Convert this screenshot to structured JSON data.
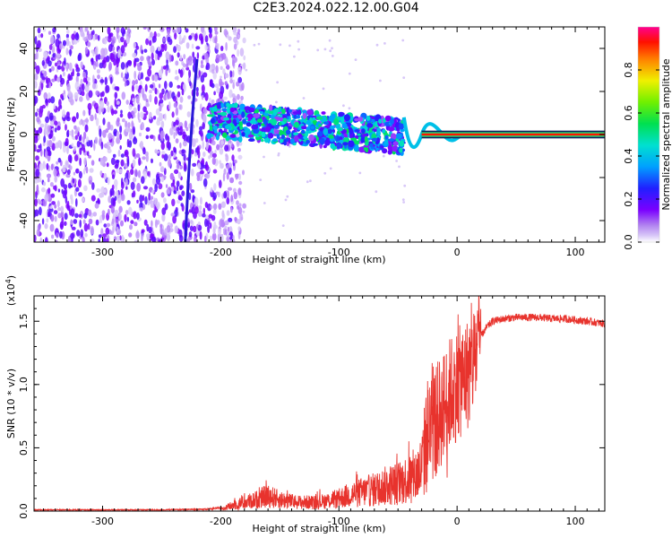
{
  "title": "C2E3.2024.022.12.00.G04",
  "chart_data": [
    {
      "type": "heatmap",
      "xlabel": "Height of straight line (km)",
      "ylabel": "Frequency (Hz)",
      "xlim": [
        -358,
        125
      ],
      "ylim": [
        -50,
        50
      ],
      "xticks": [
        -300,
        -200,
        -100,
        0,
        100
      ],
      "yticks": [
        -40,
        -20,
        0,
        20,
        40
      ],
      "colorbar": {
        "label": "Normalized spectral amplitude",
        "range": [
          0,
          1
        ],
        "ticks": [
          "0.0",
          "0.2",
          "0.4",
          "0.6",
          "0.8"
        ]
      },
      "features": [
        {
          "region": "noise",
          "x_range": [
            -358,
            -205
          ],
          "freq_range": [
            -50,
            50
          ]
        },
        {
          "region": "streak",
          "x": -222,
          "freq_range": [
            -50,
            35
          ]
        },
        {
          "region": "fragmented band",
          "x_range": [
            -210,
            -45
          ],
          "freq_center": 3,
          "freq_halfwidth": 8
        },
        {
          "region": "tonal line",
          "x_range": [
            -30,
            125
          ],
          "freq": 0,
          "amplitude": 0.9
        }
      ]
    },
    {
      "type": "line",
      "xlabel": "Height of straight line (km)",
      "ylabel": "SNR (10 * v/v)",
      "yscale_label": "(x10",
      "yscale_exp": "4",
      "xlim": [
        -358,
        125
      ],
      "ylim": [
        0,
        1.7
      ],
      "xticks": [
        -300,
        -200,
        -100,
        0,
        100
      ],
      "yticks": [
        "0.0",
        "0.5",
        "1.0",
        "1.5"
      ],
      "series": [
        {
          "color": "#e8332d",
          "x": [
            -358,
            -300,
            -250,
            -210,
            -195,
            -185,
            -170,
            -160,
            -150,
            -135,
            -120,
            -110,
            -100,
            -90,
            -80,
            -70,
            -60,
            -50,
            -45,
            -40,
            -35,
            -30,
            -25,
            -20,
            -15,
            -10,
            -5,
            0,
            5,
            10,
            15,
            20,
            25,
            30,
            40,
            50,
            60,
            70,
            80,
            90,
            100,
            110,
            125
          ],
          "y": [
            0.01,
            0.01,
            0.01,
            0.015,
            0.03,
            0.06,
            0.09,
            0.12,
            0.09,
            0.07,
            0.07,
            0.08,
            0.1,
            0.13,
            0.15,
            0.17,
            0.2,
            0.22,
            0.24,
            0.26,
            0.28,
            0.34,
            0.62,
            0.68,
            0.76,
            0.85,
            0.95,
            1.0,
            1.04,
            1.1,
            1.22,
            1.38,
            1.45,
            1.5,
            1.52,
            1.53,
            1.53,
            1.53,
            1.52,
            1.52,
            1.51,
            1.5,
            1.48
          ]
        }
      ]
    }
  ]
}
